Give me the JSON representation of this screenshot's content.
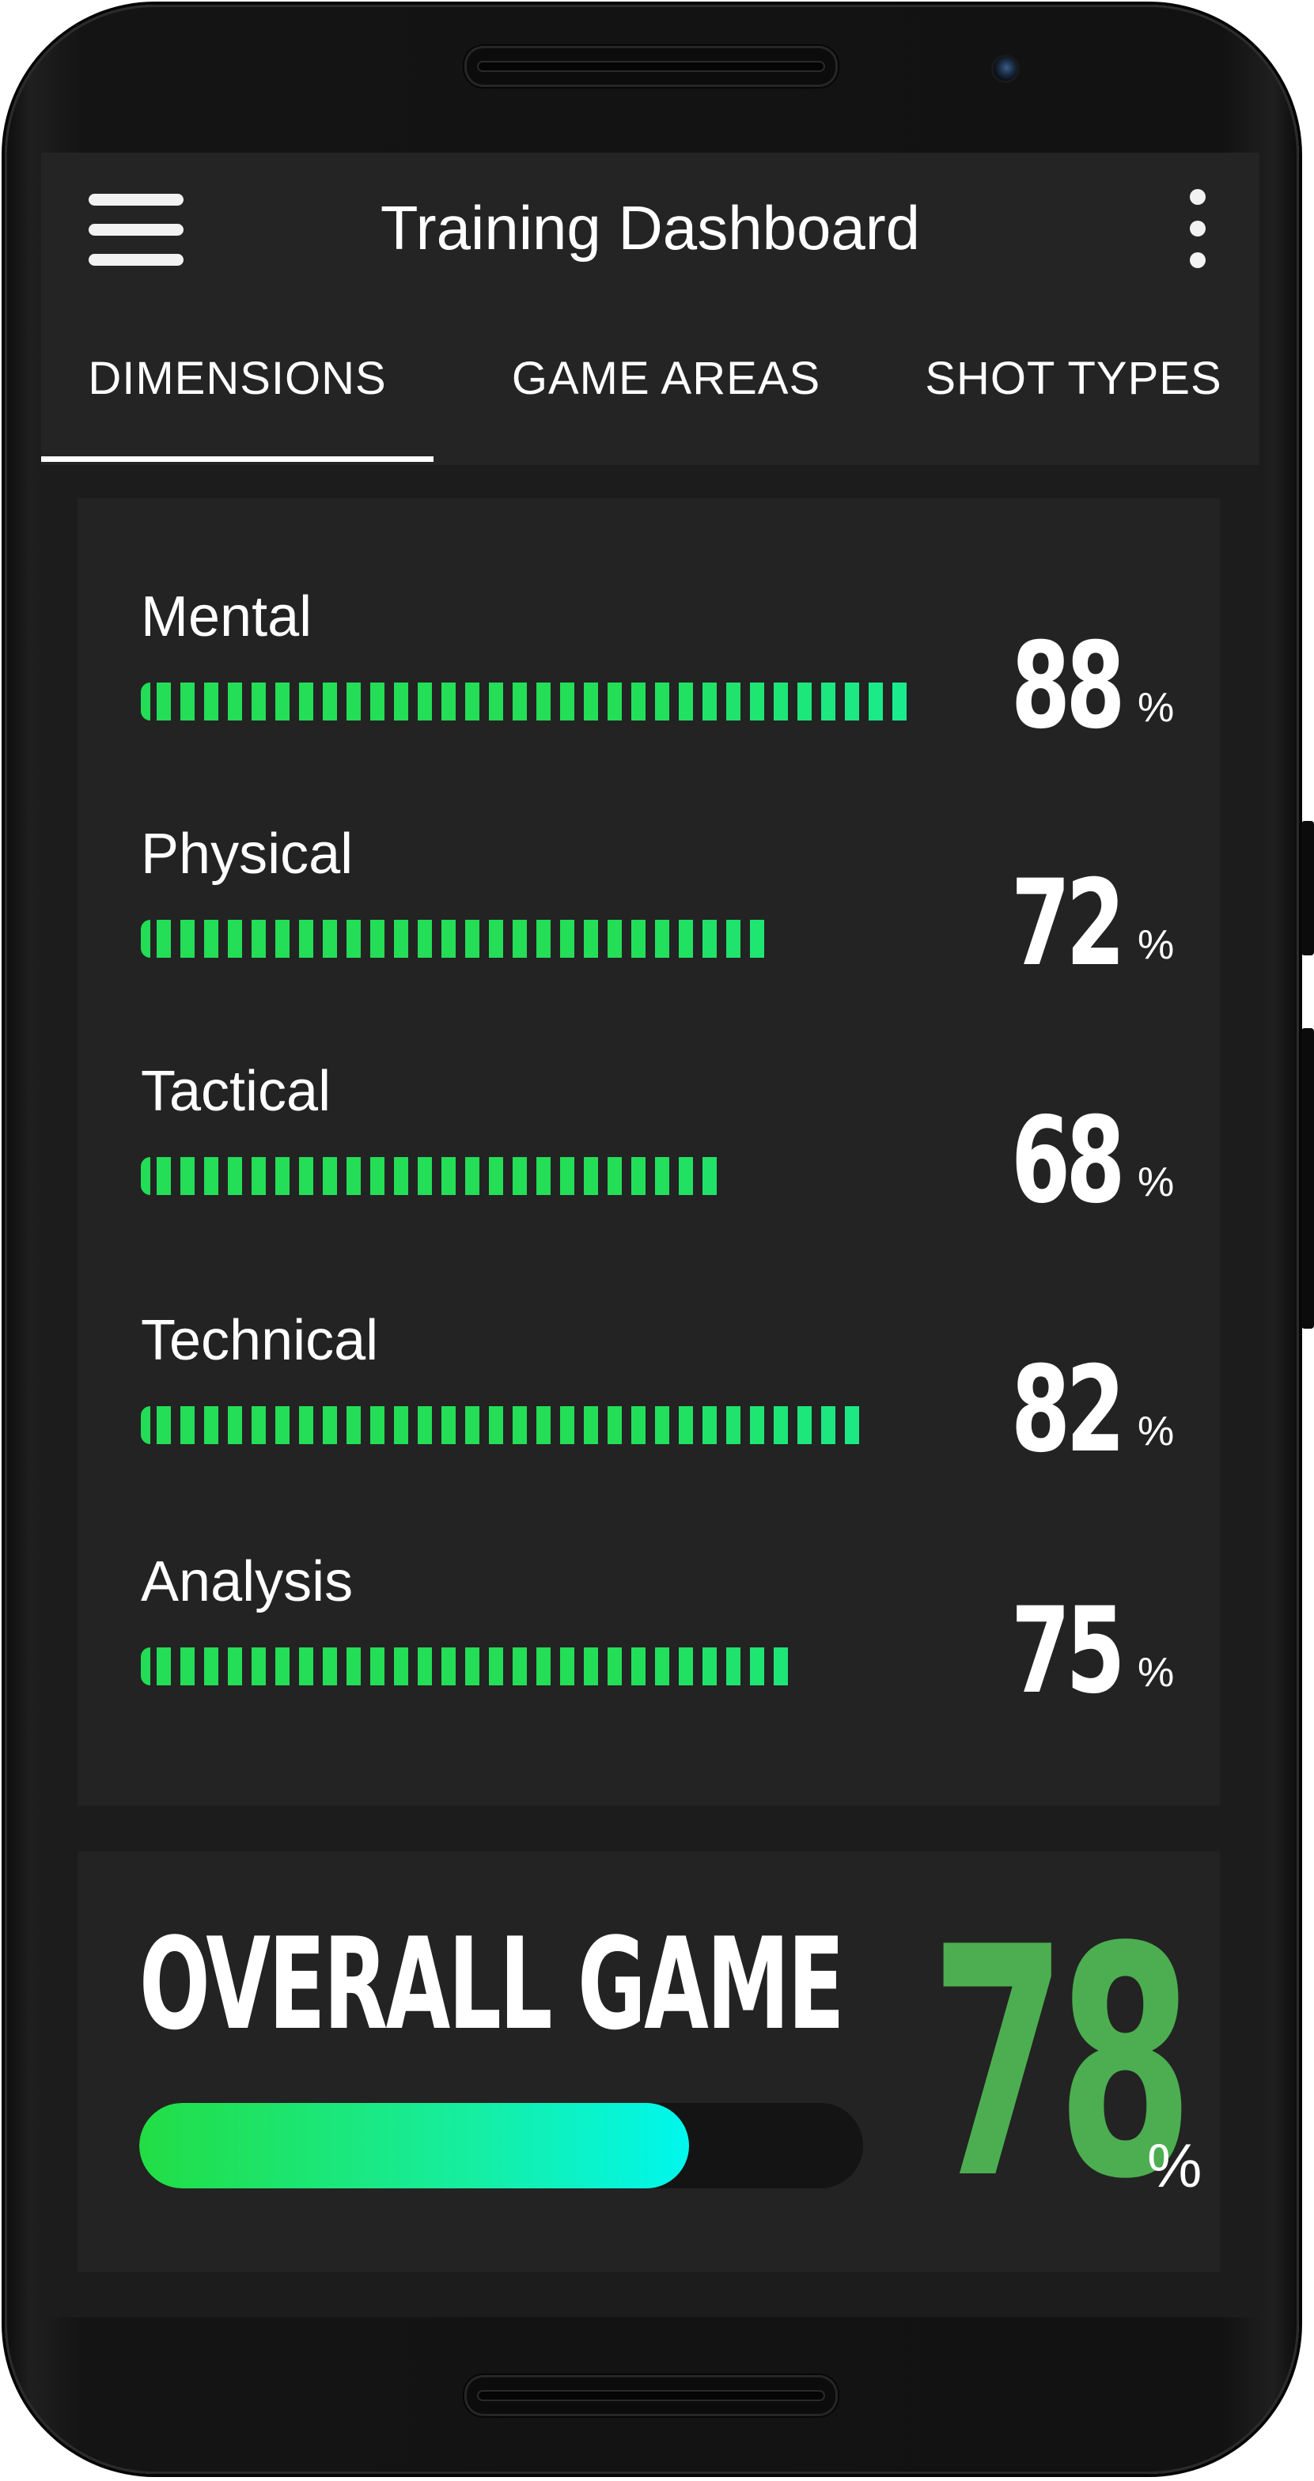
{
  "app": {
    "title": "Training Dashboard"
  },
  "tabs": [
    {
      "label": "DIMENSIONS",
      "selected": true
    },
    {
      "label": "GAME AREAS",
      "selected": false
    },
    {
      "label": "SHOT TYPES",
      "selected": false
    }
  ],
  "icons": {
    "menu": "hamburger-menu-icon",
    "more": "more-vertical-icon"
  },
  "colors": {
    "accent_green": "#23de56",
    "overall_number": "#4cae50",
    "bar_gradient_end": "#00f7ee",
    "screen_background": "#1c1c1c",
    "card_background": "#232323"
  },
  "metrics": [
    {
      "label": "Mental",
      "value": "88",
      "unit": "%",
      "level": 0.88
    },
    {
      "label": "Physical",
      "value": "72",
      "unit": "%",
      "level": 0.72
    },
    {
      "label": "Tactical",
      "value": "68",
      "unit": "%",
      "level": 0.68
    },
    {
      "label": "Technical",
      "value": "82",
      "unit": "%",
      "level": 0.82
    },
    {
      "label": "Analysis",
      "value": "75",
      "unit": "%",
      "level": 0.75
    }
  ],
  "overall": {
    "label": "OVERALL GAME",
    "value": "78",
    "unit": "%",
    "level": 0.78
  }
}
